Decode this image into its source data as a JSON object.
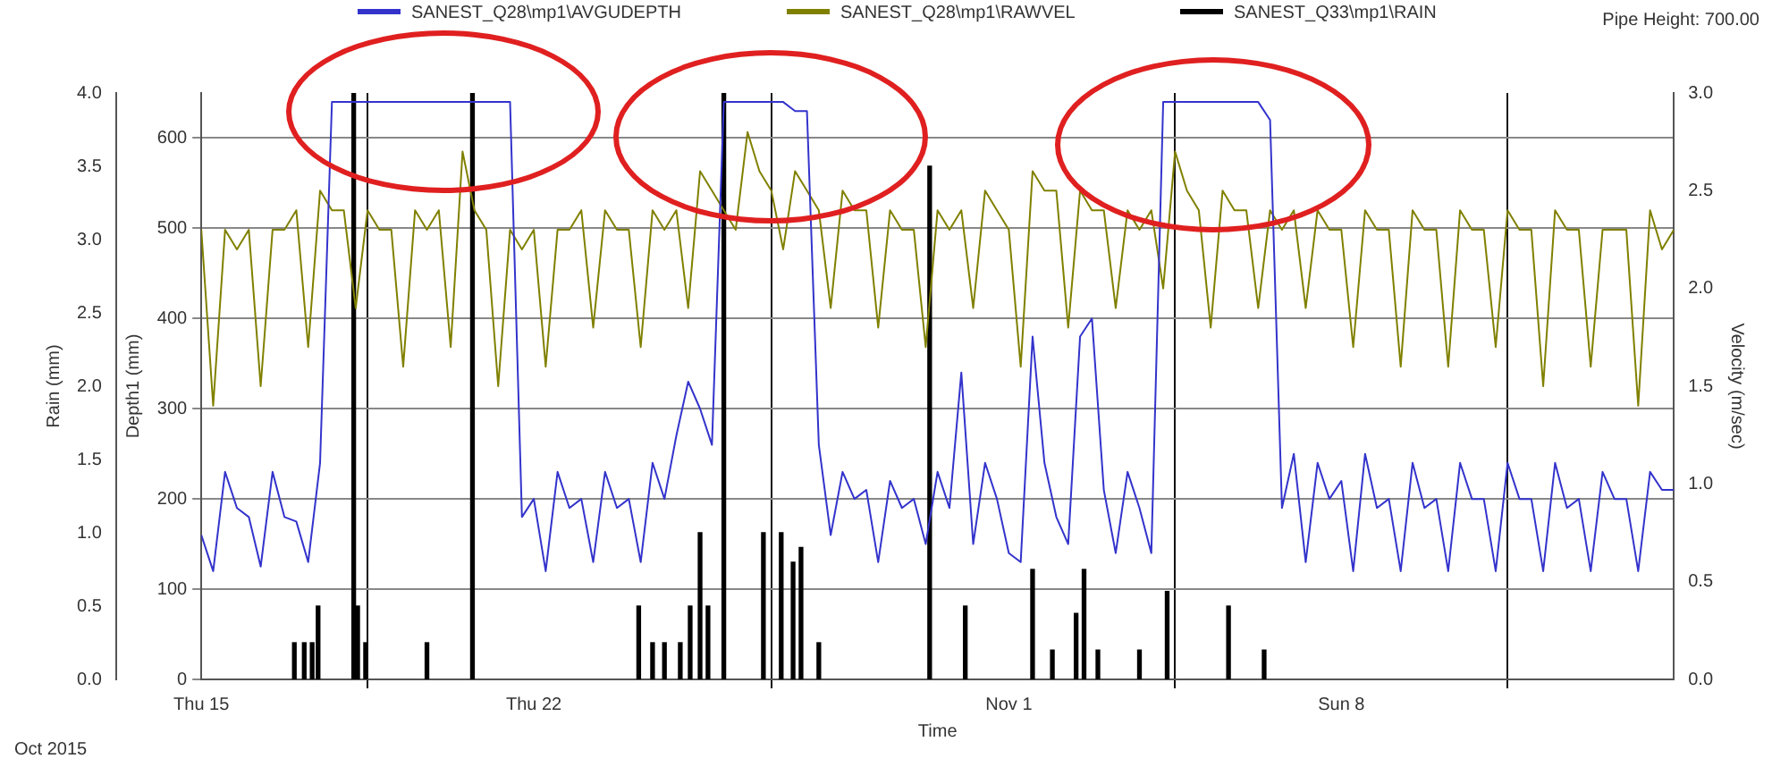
{
  "chart_data": {
    "type": "line",
    "xlabel": "Time",
    "ylabel": "Rain (mm)",
    "y2label": "Depth1 (mm)",
    "y3label": "Velocity (m/sec)",
    "annotations": [
      "Pipe Height: 700.00",
      "Oct 2015"
    ],
    "legend": "top",
    "grid": true,
    "marker": "none",
    "xlim": [
      "2015-10-15",
      "2015-11-15"
    ],
    "xticks": [
      {
        "value": "2015-10-15",
        "label": "Thu 15"
      },
      {
        "value": "2015-10-22",
        "label": "Thu 22"
      },
      {
        "value": "2015-11-01",
        "label": "Nov 1"
      },
      {
        "value": "2015-11-08",
        "label": "Sun 8"
      }
    ],
    "ylim": [
      0,
      4
    ],
    "yticks": [
      {
        "value": 0,
        "label": "0.0"
      },
      {
        "value": 0.5,
        "label": "0.5"
      },
      {
        "value": 1,
        "label": "1.0"
      },
      {
        "value": 1.5,
        "label": "1.5"
      },
      {
        "value": 2,
        "label": "2.0"
      },
      {
        "value": 2.5,
        "label": "2.5"
      },
      {
        "value": 3,
        "label": "3.0"
      },
      {
        "value": 3.5,
        "label": "3.5"
      },
      {
        "value": 4,
        "label": "4.0"
      }
    ],
    "y2lim": [
      0,
      650
    ],
    "y2ticks": [
      0,
      100,
      200,
      300,
      400,
      500,
      600
    ],
    "y3lim": [
      0,
      3
    ],
    "y3ticks": [
      {
        "value": 0,
        "label": "0.0"
      },
      {
        "value": 0.5,
        "label": "0.5"
      },
      {
        "value": 1,
        "label": "1.0"
      },
      {
        "value": 1.5,
        "label": "1.5"
      },
      {
        "value": 2,
        "label": "2.0"
      },
      {
        "value": 2.5,
        "label": "2.5"
      },
      {
        "value": 3,
        "label": "3.0"
      }
    ],
    "x": [
      "2015-10-15T00:00",
      "2015-10-15T06:00",
      "2015-10-15T12:00",
      "2015-10-15T18:00",
      "2015-10-16T00:00",
      "2015-10-16T06:00",
      "2015-10-16T12:00",
      "2015-10-16T18:00",
      "2015-10-17T00:00",
      "2015-10-17T06:00",
      "2015-10-17T12:00",
      "2015-10-17T18:00",
      "2015-10-18T00:00",
      "2015-10-18T06:00",
      "2015-10-18T12:00",
      "2015-10-18T18:00",
      "2015-10-19T00:00",
      "2015-10-19T06:00",
      "2015-10-19T12:00",
      "2015-10-19T18:00",
      "2015-10-20T00:00",
      "2015-10-20T06:00",
      "2015-10-20T12:00",
      "2015-10-20T18:00",
      "2015-10-21T00:00",
      "2015-10-21T06:00",
      "2015-10-21T12:00",
      "2015-10-21T18:00",
      "2015-10-22T00:00",
      "2015-10-22T06:00",
      "2015-10-22T12:00",
      "2015-10-22T18:00",
      "2015-10-23T00:00",
      "2015-10-23T06:00",
      "2015-10-23T12:00",
      "2015-10-23T18:00",
      "2015-10-24T00:00",
      "2015-10-24T06:00",
      "2015-10-24T12:00",
      "2015-10-24T18:00",
      "2015-10-25T00:00",
      "2015-10-25T06:00",
      "2015-10-25T12:00",
      "2015-10-25T18:00",
      "2015-10-26T00:00",
      "2015-10-26T06:00",
      "2015-10-26T12:00",
      "2015-10-26T18:00",
      "2015-10-27T00:00",
      "2015-10-27T06:00",
      "2015-10-27T12:00",
      "2015-10-27T18:00",
      "2015-10-28T00:00",
      "2015-10-28T06:00",
      "2015-10-28T12:00",
      "2015-10-28T18:00",
      "2015-10-29T00:00",
      "2015-10-29T06:00",
      "2015-10-29T12:00",
      "2015-10-29T18:00",
      "2015-10-30T00:00",
      "2015-10-30T06:00",
      "2015-10-30T12:00",
      "2015-10-30T18:00",
      "2015-10-31T00:00",
      "2015-10-31T06:00",
      "2015-10-31T12:00",
      "2015-10-31T18:00",
      "2015-11-01T00:00",
      "2015-11-01T06:00",
      "2015-11-01T12:00",
      "2015-11-01T18:00",
      "2015-11-02T00:00",
      "2015-11-02T06:00",
      "2015-11-02T12:00",
      "2015-11-02T18:00",
      "2015-11-03T00:00",
      "2015-11-03T06:00",
      "2015-11-03T12:00",
      "2015-11-03T18:00",
      "2015-11-04T00:00",
      "2015-11-04T06:00",
      "2015-11-04T12:00",
      "2015-11-04T18:00",
      "2015-11-05T00:00",
      "2015-11-05T06:00",
      "2015-11-05T12:00",
      "2015-11-05T18:00",
      "2015-11-06T00:00",
      "2015-11-06T06:00",
      "2015-11-06T12:00",
      "2015-11-06T18:00",
      "2015-11-07T00:00",
      "2015-11-07T06:00",
      "2015-11-07T12:00",
      "2015-11-07T18:00",
      "2015-11-08T00:00",
      "2015-11-08T06:00",
      "2015-11-08T12:00",
      "2015-11-08T18:00",
      "2015-11-09T00:00",
      "2015-11-09T06:00",
      "2015-11-09T12:00",
      "2015-11-09T18:00",
      "2015-11-10T00:00",
      "2015-11-10T06:00",
      "2015-11-10T12:00",
      "2015-11-10T18:00",
      "2015-11-11T00:00",
      "2015-11-11T06:00",
      "2015-11-11T12:00",
      "2015-11-11T18:00",
      "2015-11-12T00:00",
      "2015-11-12T06:00",
      "2015-11-12T12:00",
      "2015-11-12T18:00",
      "2015-11-13T00:00",
      "2015-11-13T06:00",
      "2015-11-13T12:00",
      "2015-11-13T18:00",
      "2015-11-14T00:00",
      "2015-11-14T06:00",
      "2015-11-14T12:00",
      "2015-11-14T18:00",
      "2015-11-15T00:00"
    ],
    "series": [
      {
        "name": "SANEST_Q28\\mp1\\AVGUDEPTH",
        "axis": "y2",
        "color": "#3333cc",
        "values": [
          160,
          120,
          230,
          190,
          180,
          125,
          230,
          180,
          175,
          130,
          240,
          640,
          640,
          640,
          640,
          640,
          640,
          640,
          640,
          640,
          640,
          640,
          640,
          640,
          640,
          640,
          640,
          180,
          200,
          120,
          230,
          190,
          200,
          130,
          230,
          190,
          200,
          130,
          240,
          200,
          270,
          330,
          300,
          260,
          640,
          640,
          640,
          640,
          640,
          640,
          630,
          630,
          260,
          160,
          230,
          200,
          210,
          130,
          220,
          190,
          200,
          150,
          230,
          190,
          340,
          150,
          240,
          200,
          140,
          130,
          380,
          240,
          180,
          150,
          380,
          400,
          210,
          140,
          230,
          190,
          140,
          640,
          640,
          640,
          640,
          640,
          640,
          640,
          640,
          640,
          620,
          190,
          250,
          130,
          240,
          200,
          220,
          120,
          250,
          190,
          200,
          120,
          240,
          190,
          200,
          120,
          240,
          200,
          200,
          120,
          240,
          200,
          200,
          120,
          240,
          190,
          200,
          120,
          230,
          200,
          200,
          120,
          230,
          210,
          210
        ]
      },
      {
        "name": "SANEST_Q28\\mp1\\RAWVEL",
        "axis": "y3",
        "color": "#808000",
        "values": [
          2.3,
          1.4,
          2.3,
          2.2,
          2.3,
          1.5,
          2.3,
          2.3,
          2.4,
          1.7,
          2.5,
          2.4,
          2.4,
          1.9,
          2.4,
          2.3,
          2.3,
          1.6,
          2.4,
          2.3,
          2.4,
          1.7,
          2.7,
          2.4,
          2.3,
          1.5,
          2.3,
          2.2,
          2.3,
          1.6,
          2.3,
          2.3,
          2.4,
          1.8,
          2.4,
          2.3,
          2.3,
          1.7,
          2.4,
          2.3,
          2.4,
          1.9,
          2.6,
          2.5,
          2.4,
          2.3,
          2.8,
          2.6,
          2.5,
          2.2,
          2.6,
          2.5,
          2.4,
          1.9,
          2.5,
          2.4,
          2.4,
          1.8,
          2.4,
          2.3,
          2.3,
          1.7,
          2.4,
          2.3,
          2.4,
          1.9,
          2.5,
          2.4,
          2.3,
          1.6,
          2.6,
          2.5,
          2.5,
          1.8,
          2.5,
          2.4,
          2.4,
          1.9,
          2.4,
          2.3,
          2.4,
          2.0,
          2.7,
          2.5,
          2.4,
          1.8,
          2.5,
          2.4,
          2.4,
          1.9,
          2.4,
          2.3,
          2.4,
          1.9,
          2.4,
          2.3,
          2.3,
          1.7,
          2.4,
          2.3,
          2.3,
          1.6,
          2.4,
          2.3,
          2.3,
          1.6,
          2.4,
          2.3,
          2.3,
          1.7,
          2.4,
          2.3,
          2.3,
          1.5,
          2.4,
          2.3,
          2.3,
          1.6,
          2.3,
          2.3,
          2.3,
          1.4,
          2.4,
          2.2,
          2.3
        ]
      },
      {
        "name": "SANEST_Q33\\mp1\\RAIN",
        "type": "bar",
        "axis": "y",
        "color": "#000000",
        "x": [
          "2015-10-16T23:00",
          "2015-10-17T04:00",
          "2015-10-17T08:00",
          "2015-10-17T11:00",
          "2015-10-18T05:00",
          "2015-10-18T07:00",
          "2015-10-18T11:00",
          "2015-10-19T18:00",
          "2015-10-20T17:00",
          "2015-10-24T05:00",
          "2015-10-24T12:00",
          "2015-10-24T18:00",
          "2015-10-25T02:00",
          "2015-10-25T07:00",
          "2015-10-25T12:00",
          "2015-10-25T16:00",
          "2015-10-26T00:00",
          "2015-10-26T20:00",
          "2015-10-27T05:00",
          "2015-10-27T11:00",
          "2015-10-27T15:00",
          "2015-10-28T00:00",
          "2015-10-30T08:00",
          "2015-10-31T02:00",
          "2015-11-01T12:00",
          "2015-11-01T22:00",
          "2015-11-02T10:00",
          "2015-11-02T14:00",
          "2015-11-02T21:00",
          "2015-11-03T18:00",
          "2015-11-04T08:00",
          "2015-11-05T15:00",
          "2015-11-06T09:00"
        ],
        "values": [
          0.25,
          0.25,
          0.25,
          0.5,
          4.0,
          0.5,
          0.25,
          0.25,
          4.0,
          0.5,
          0.25,
          0.25,
          0.25,
          0.5,
          1.0,
          0.5,
          4.0,
          1.0,
          1.0,
          0.8,
          0.9,
          0.25,
          3.5,
          0.5,
          0.75,
          0.2,
          0.45,
          0.75,
          0.2,
          0.2,
          0.6,
          0.5,
          0.2
        ]
      }
    ]
  }
}
